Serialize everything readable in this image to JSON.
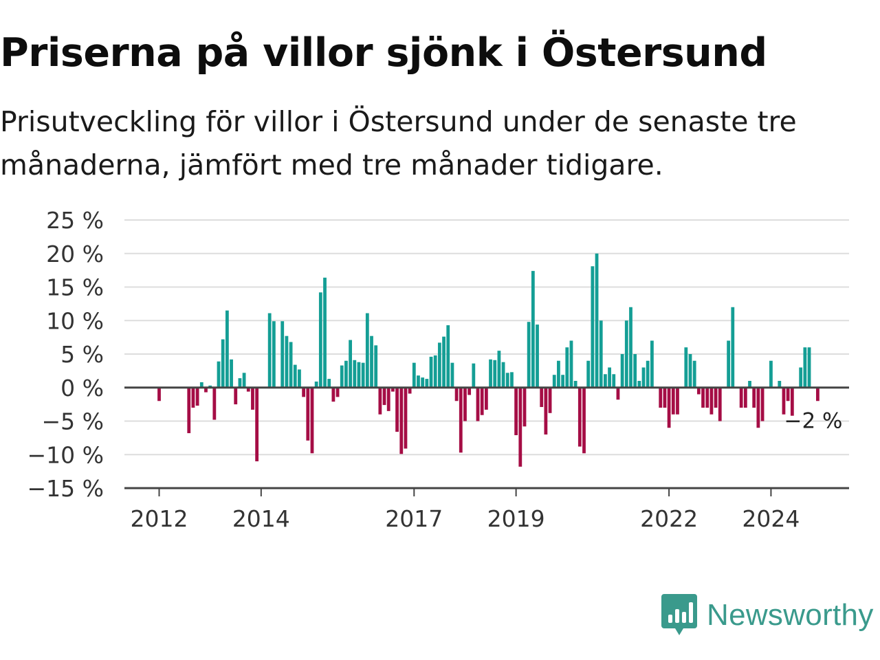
{
  "title": "Priserna på villor sjönk i Östersund",
  "subtitle": "Prisutveckling för villor i Östersund under de senaste tre månaderna, jämfört med tre månader tidigare.",
  "brand": {
    "name": "Newsworthy",
    "color": "#3a9a8c",
    "icon": "newsworthy-logo-icon"
  },
  "colors": {
    "positive": "#149e95",
    "negative": "#a50d45",
    "grid": "#dddddd",
    "axis": "#444444"
  },
  "chart_data": {
    "type": "bar",
    "title": "Priserna på villor sjönk i Östersund",
    "xlabel": "",
    "ylabel": "",
    "ylim": [
      -15,
      25
    ],
    "yticks": [
      25,
      20,
      15,
      10,
      5,
      0,
      -5,
      -10,
      -15
    ],
    "ytick_labels": [
      "25 %",
      "20 %",
      "15 %",
      "10 %",
      "5 %",
      "0 %",
      "−5 %",
      "−10 %",
      "−15 %"
    ],
    "xticks": [
      "2012",
      "2014",
      "2017",
      "2019",
      "2022",
      "2024"
    ],
    "start": "2012-01",
    "end_label": "−2 %",
    "grid": true,
    "legend": "none",
    "values": [
      -2,
      0,
      0,
      0,
      0,
      0,
      0,
      -6.8,
      -3.0,
      -2.7,
      0.8,
      -0.7,
      0.3,
      -4.8,
      3.9,
      7.2,
      11.5,
      4.2,
      -2.5,
      1.4,
      2.2,
      -0.6,
      -3.3,
      -11.0,
      0,
      0,
      11.1,
      9.9,
      0,
      9.9,
      7.7,
      6.8,
      3.4,
      2.7,
      -1.4,
      -7.9,
      -9.8,
      0.9,
      14.2,
      16.4,
      1.3,
      -2.1,
      -1.4,
      3.3,
      4.0,
      7.1,
      4.1,
      3.8,
      3.7,
      11.1,
      7.7,
      6.3,
      -4.0,
      -2.6,
      -3.5,
      -0.6,
      -6.6,
      -9.9,
      -9.1,
      -0.9,
      3.7,
      1.8,
      1.5,
      1.3,
      4.6,
      4.8,
      6.7,
      7.6,
      9.3,
      3.7,
      -2.0,
      -9.7,
      -5.0,
      -1.1,
      3.6,
      -5.0,
      -4.1,
      -3.3,
      4.2,
      4.1,
      5.5,
      3.8,
      2.2,
      2.3,
      -7.1,
      -11.8,
      -5.8,
      9.8,
      17.4,
      9.4,
      -2.9,
      -7.0,
      -3.8,
      1.9,
      4.0,
      1.9,
      6.0,
      7.0,
      1.0,
      -8.8,
      -9.8,
      4.0,
      18.1,
      20.0,
      10.0,
      2.0,
      3.0,
      2.0,
      -1.8,
      5.0,
      10.0,
      12.0,
      5.0,
      1.0,
      3.0,
      4.0,
      7.0,
      0,
      -3.0,
      -3.0,
      -6.0,
      -4.0,
      -4.0,
      0,
      6.0,
      5.0,
      4.0,
      -1.0,
      -3.0,
      -3.0,
      -4.0,
      -3.0,
      -5.0,
      0,
      7.0,
      12.0,
      0,
      -3.0,
      -3.0,
      1.0,
      -3.0,
      -6.0,
      -5.0,
      0,
      4.0,
      0,
      1.0,
      -4.0,
      -2.0,
      -4.2,
      0,
      3.0,
      6.0,
      6.0,
      0,
      -2.0
    ]
  }
}
